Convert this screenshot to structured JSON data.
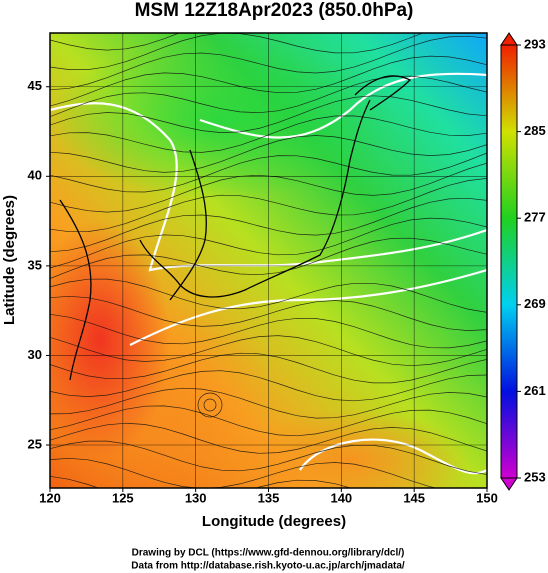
{
  "chart_data": {
    "type": "map",
    "title": "MSM 12Z18Apr2023 (850.0hPa)",
    "x_label": "Longitude (degrees)",
    "y_label": "Latitude  (degrees)",
    "xlim": [
      120,
      150
    ],
    "ylim": [
      22.6,
      48
    ],
    "xticks": [
      120,
      125,
      130,
      135,
      140,
      145,
      150
    ],
    "yticks": [
      25,
      30,
      35,
      40,
      45
    ],
    "grid": true,
    "colorbar": {
      "lim": [
        253,
        293
      ],
      "ticks": [
        253,
        261,
        269,
        277,
        285,
        293
      ]
    },
    "credits": [
      "Drawing by DCL (https://www.gfd-dennou.org/library/dcl/)",
      "Data from http://database.rish.kyoto-u.ac.jp/arch/jmadata/"
    ]
  }
}
